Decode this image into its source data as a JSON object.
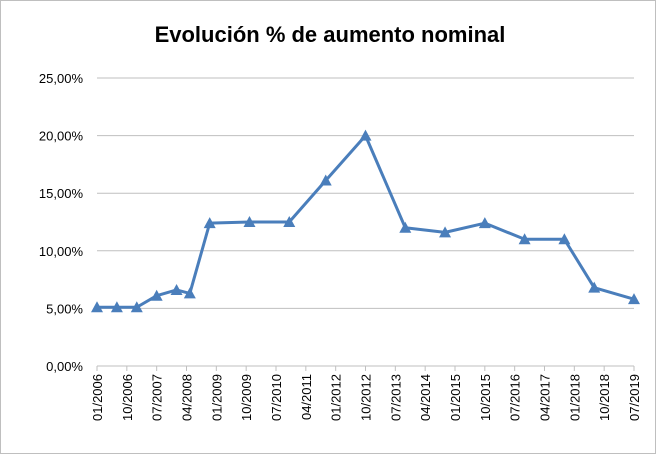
{
  "chart_data": {
    "type": "line",
    "title": "Evolución % de aumento nominal",
    "x": [
      "01/2006",
      "07/2006",
      "01/2007",
      "07/2007",
      "01/2008",
      "05/2008",
      "11/2008",
      "11/2009",
      "11/2010",
      "10/2011",
      "10/2012",
      "10/2013",
      "10/2014",
      "10/2015",
      "10/2016",
      "10/2017",
      "07/2018",
      "07/2019"
    ],
    "series": [
      {
        "name": "Evolución % de aumento nominal",
        "color": "#4a7ebb",
        "values": [
          5.1,
          5.1,
          5.1,
          6.1,
          6.6,
          6.3,
          12.4,
          12.5,
          12.5,
          16.1,
          20.0,
          12.0,
          11.6,
          12.4,
          11.0,
          11.0,
          6.8,
          5.8
        ]
      }
    ],
    "xlim": [
      "01/2006",
      "07/2019"
    ],
    "xticks": [
      "01/2006",
      "10/2006",
      "07/2007",
      "04/2008",
      "01/2009",
      "10/2009",
      "07/2010",
      "04/2011",
      "01/2012",
      "10/2012",
      "07/2013",
      "04/2014",
      "01/2015",
      "10/2015",
      "07/2016",
      "04/2017",
      "01/2018",
      "10/2018",
      "07/2019"
    ],
    "ylim": [
      0,
      25
    ],
    "yticks": [
      {
        "value": 0,
        "label": "0,00%"
      },
      {
        "value": 5,
        "label": "5,00%"
      },
      {
        "value": 10,
        "label": "10,00%"
      },
      {
        "value": 15,
        "label": "15,00%"
      },
      {
        "value": 20,
        "label": "20,00%"
      },
      {
        "value": 25,
        "label": "25,00%"
      }
    ],
    "grid": true
  }
}
